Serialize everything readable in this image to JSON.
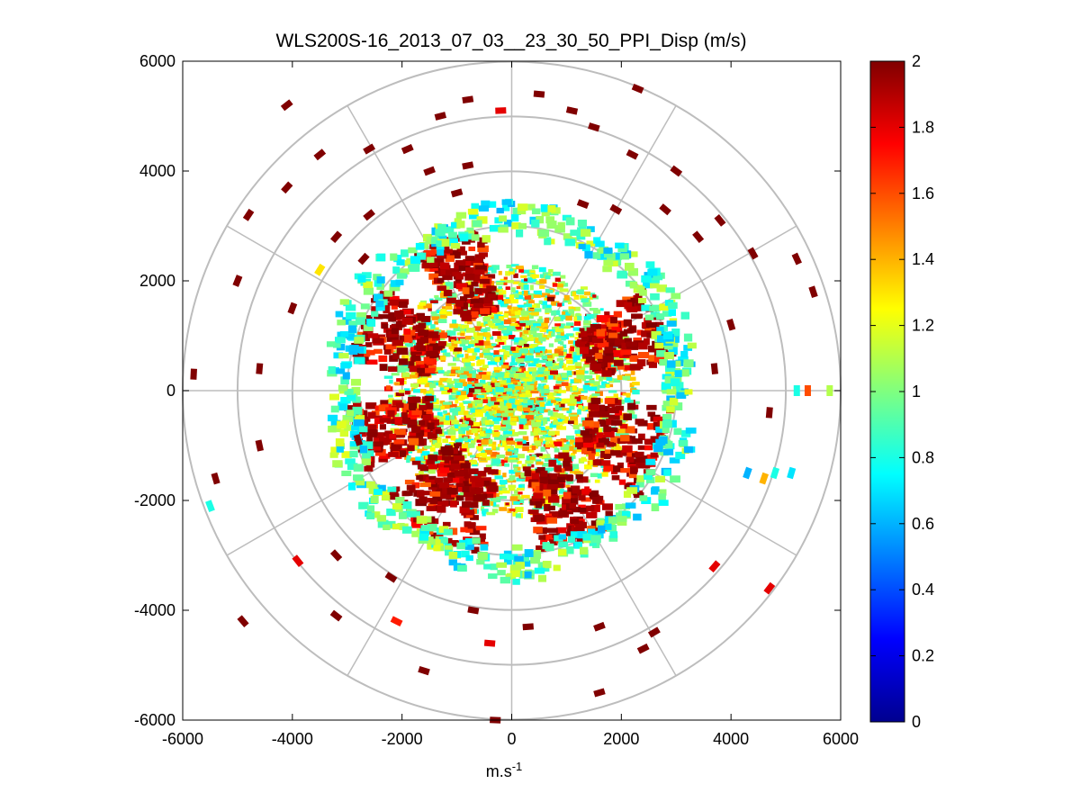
{
  "chart_data": {
    "type": "heatmap",
    "subtype": "polar-ppi-scan",
    "title": "WLS200S-16_2013_07_03__23_30_50_PPI_Disp (m/s)",
    "xlabel_base": "m.s",
    "xlabel_exp": "-1",
    "ylabel": "",
    "xlim": [
      -6000,
      6000
    ],
    "ylim": [
      -6000,
      6000
    ],
    "x_ticks": [
      -6000,
      -4000,
      -2000,
      0,
      2000,
      4000,
      6000
    ],
    "y_ticks": [
      -6000,
      -4000,
      -2000,
      0,
      2000,
      4000,
      6000
    ],
    "x_tick_labels": [
      "-6000",
      "-4000",
      "-2000",
      "0",
      "2000",
      "4000",
      "6000"
    ],
    "y_tick_labels": [
      "-6000",
      "-4000",
      "-2000",
      "0",
      "2000",
      "4000",
      "6000"
    ],
    "polar_rings": [
      2000,
      3000,
      4000,
      5000,
      6000
    ],
    "polar_spoke_step_deg": 30,
    "grid": true,
    "colorbar": {
      "colormap": "jet",
      "clim": [
        0,
        2
      ],
      "ticks": [
        0,
        0.2,
        0.4,
        0.6,
        0.8,
        1,
        1.2,
        1.4,
        1.6,
        1.8,
        2
      ],
      "tick_labels": [
        "0",
        "0.2",
        "0.4",
        "0.6",
        "0.8",
        "1",
        "1.2",
        "1.4",
        "1.6",
        "1.8",
        "2"
      ],
      "placement": "right"
    },
    "scatter_data": {
      "units": "m (x,y) and m/s (value); approximate reading of scattered range-gate cells",
      "scattered_cells": [
        [
          -4100,
          5200,
          2
        ],
        [
          -3500,
          4300,
          2
        ],
        [
          -2600,
          4400,
          2
        ],
        [
          -1900,
          4400,
          2
        ],
        [
          -800,
          5300,
          2
        ],
        [
          -1300,
          5000,
          2
        ],
        [
          -200,
          5100,
          1.8
        ],
        [
          500,
          5400,
          2
        ],
        [
          1100,
          5100,
          2
        ],
        [
          1500,
          4800,
          2
        ],
        [
          2300,
          5500,
          2
        ],
        [
          -1500,
          4000,
          2
        ],
        [
          -4100,
          3700,
          2
        ],
        [
          -4800,
          3200,
          2
        ],
        [
          -5000,
          2000,
          2
        ],
        [
          -3200,
          2800,
          2
        ],
        [
          -2700,
          2400,
          2
        ],
        [
          -4000,
          1500,
          2
        ],
        [
          -5800,
          300,
          2
        ],
        [
          -4600,
          400,
          2
        ],
        [
          -2800,
          -900,
          2
        ],
        [
          -4600,
          -1000,
          2
        ],
        [
          -5400,
          -1600,
          2
        ],
        [
          -5500,
          -2100,
          0.8
        ],
        [
          -3900,
          -3100,
          1.8
        ],
        [
          -3200,
          -3000,
          2
        ],
        [
          -2200,
          -3400,
          2
        ],
        [
          -4900,
          -4200,
          2
        ],
        [
          -3200,
          -4100,
          2
        ],
        [
          -2100,
          -4200,
          1.7
        ],
        [
          -1600,
          -5100,
          2
        ],
        [
          -400,
          -4600,
          1.8
        ],
        [
          -700,
          -4000,
          2
        ],
        [
          300,
          -4300,
          2
        ],
        [
          1600,
          -4300,
          2
        ],
        [
          2400,
          -4700,
          2
        ],
        [
          1600,
          -5500,
          2
        ],
        [
          -300,
          -6000,
          2
        ],
        [
          2600,
          -4400,
          2
        ],
        [
          3700,
          -3200,
          1.8
        ],
        [
          4700,
          -3600,
          1.8
        ],
        [
          4300,
          -1500,
          0.6
        ],
        [
          4600,
          -1600,
          1.4
        ],
        [
          4800,
          -1500,
          0.8
        ],
        [
          5100,
          -1500,
          0.7
        ],
        [
          4700,
          -400,
          2
        ],
        [
          5200,
          0,
          0.8
        ],
        [
          5400,
          0,
          1.6
        ],
        [
          5800,
          0,
          1.1
        ],
        [
          5500,
          1800,
          2
        ],
        [
          4400,
          2500,
          2
        ],
        [
          5200,
          2400,
          2
        ],
        [
          3800,
          3100,
          2
        ],
        [
          3400,
          2800,
          2
        ],
        [
          4000,
          1200,
          2
        ],
        [
          3700,
          400,
          2
        ],
        [
          3000,
          4000,
          2
        ],
        [
          2800,
          3300,
          2
        ],
        [
          2200,
          4300,
          2
        ],
        [
          1900,
          3300,
          2
        ],
        [
          1300,
          3400,
          2
        ],
        [
          -1000,
          3600,
          2
        ],
        [
          -2600,
          3200,
          2
        ],
        [
          -3500,
          2200,
          1.3
        ],
        [
          -800,
          4100,
          2
        ]
      ]
    }
  }
}
